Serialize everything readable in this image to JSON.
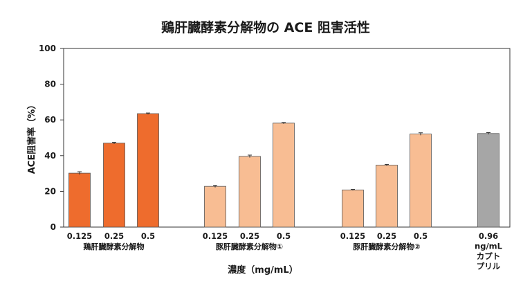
{
  "chart_data": {
    "type": "bar",
    "title": "鶏肝臓酵素分解物の ACE 阻害活性",
    "xlabel": "濃度（mg/mL）",
    "ylabel": "ACE阻害率（%）",
    "ylim": [
      0,
      100
    ],
    "yticks": [
      0,
      20,
      40,
      60,
      80,
      100
    ],
    "grid": false,
    "groups": [
      {
        "name": "鶏肝臓酵素分解物",
        "color": "#ee6c2d",
        "categories": [
          "0.125",
          "0.25",
          "0.5"
        ],
        "values": [
          30.2,
          47.0,
          63.5
        ],
        "errors": [
          0.8,
          0.5,
          0.4
        ]
      },
      {
        "name": "豚肝臓酵素分解物①",
        "color": "#f8bd93",
        "categories": [
          "0.125",
          "0.25",
          "0.5"
        ],
        "values": [
          22.8,
          39.6,
          58.2
        ],
        "errors": [
          0.6,
          0.7,
          0.4
        ]
      },
      {
        "name": "豚肝臓酵素分解物②",
        "color": "#f8bd93",
        "categories": [
          "0.125",
          "0.25",
          "0.5"
        ],
        "values": [
          20.8,
          34.7,
          52.1
        ],
        "errors": [
          0.3,
          0.4,
          0.7
        ]
      },
      {
        "name": "",
        "color": "#a6a6a6",
        "categories": [
          "0.96\nng/mL\nカプト\nプリル"
        ],
        "values": [
          52.4
        ],
        "errors": [
          0.5
        ]
      }
    ]
  }
}
